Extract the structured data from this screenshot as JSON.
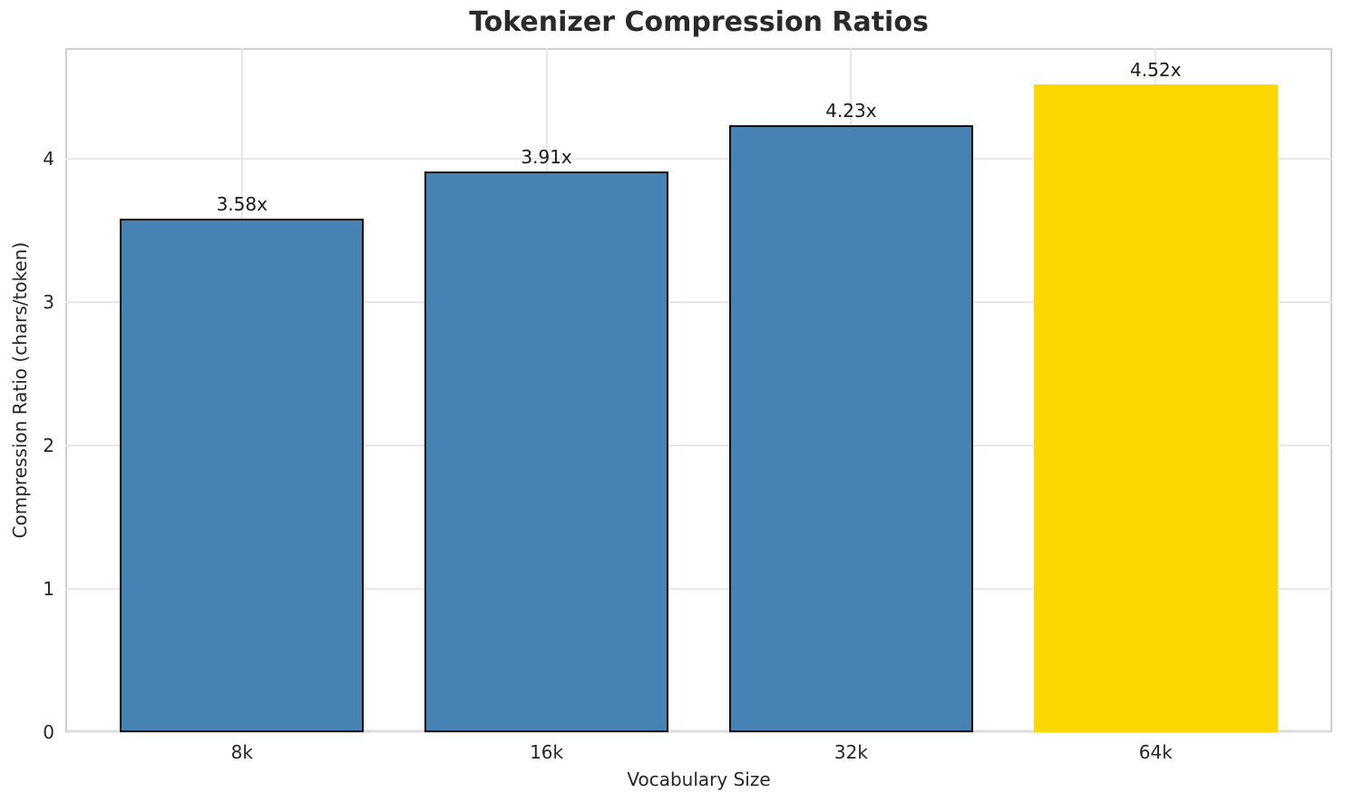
{
  "chart_data": {
    "type": "bar",
    "title": "Tokenizer Compression Ratios",
    "xlabel": "Vocabulary Size",
    "ylabel": "Compression Ratio (chars/token)",
    "categories": [
      "8k",
      "16k",
      "32k",
      "64k"
    ],
    "values": [
      3.58,
      3.91,
      4.23,
      4.52
    ],
    "bar_labels": [
      "3.58x",
      "3.91x",
      "4.23x",
      "4.52x"
    ],
    "yticks": [
      "0",
      "1",
      "2",
      "3",
      "4"
    ],
    "ylim": [
      0,
      4.77
    ],
    "xlim": [
      -0.58,
      3.58
    ],
    "bar_width": 0.8,
    "grid": true,
    "legend_position": "none",
    "highlight_index": 3,
    "colors": {
      "bar": "#4682B4",
      "highlight_bar": "#FFD700",
      "bar_edge": "#0d0d0d",
      "grid_line": "#e7e7e7",
      "spine": "#d0d0d0",
      "title_text": "#2a2a2a",
      "tick_text": "#262626",
      "value_label_text": "#1a1a1a",
      "background": "#ffffff"
    }
  }
}
